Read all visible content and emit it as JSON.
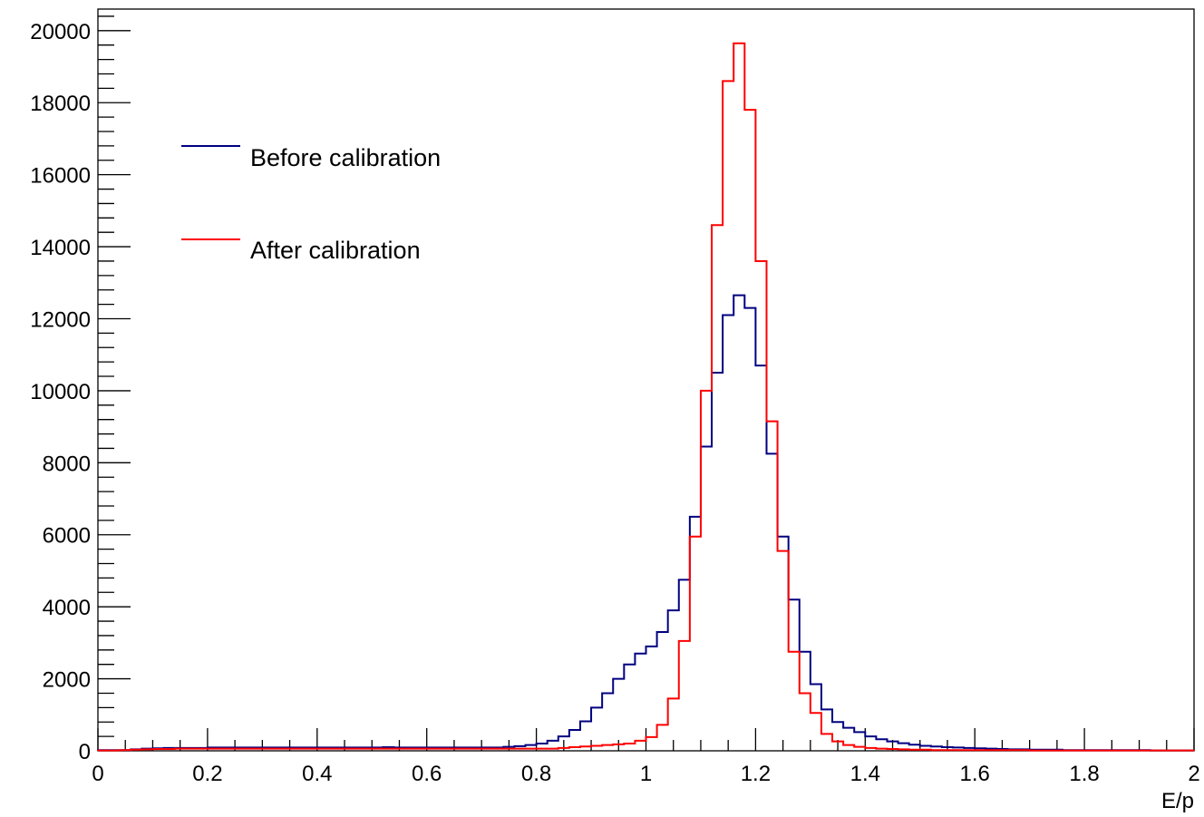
{
  "chart_data": {
    "type": "line",
    "title": "",
    "xlabel": "E/p",
    "ylabel": "",
    "xlim": [
      0,
      2
    ],
    "ylim": [
      0,
      20600
    ],
    "bin_width": 0.02,
    "x_major_ticks": [
      0,
      0.2,
      0.4,
      0.6,
      0.8,
      1,
      1.2,
      1.4,
      1.6,
      1.8,
      2
    ],
    "x_tick_labels": [
      "0",
      "0.2",
      "0.4",
      "0.6",
      "0.8",
      "1",
      "1.2",
      "1.4",
      "1.6",
      "1.8",
      "2"
    ],
    "y_major_ticks": [
      0,
      2000,
      4000,
      6000,
      8000,
      10000,
      12000,
      14000,
      16000,
      18000,
      20000
    ],
    "y_tick_labels": [
      "0",
      "2000",
      "4000",
      "6000",
      "8000",
      "10000",
      "12000",
      "14000",
      "16000",
      "18000",
      "20000"
    ],
    "grid": false,
    "legend_position": "top-left",
    "series": [
      {
        "name": "Before calibration",
        "color": "#000080",
        "values": [
          20,
          20,
          20,
          40,
          60,
          70,
          80,
          80,
          80,
          80,
          90,
          90,
          90,
          90,
          90,
          90,
          90,
          90,
          90,
          90,
          90,
          90,
          90,
          90,
          90,
          90,
          100,
          90,
          90,
          90,
          90,
          90,
          90,
          90,
          90,
          90,
          90,
          110,
          130,
          160,
          200,
          280,
          400,
          580,
          820,
          1200,
          1600,
          2000,
          2400,
          2700,
          2900,
          3300,
          3900,
          4750,
          6500,
          8450,
          10500,
          12100,
          12650,
          12300,
          10700,
          8250,
          5950,
          4200,
          2750,
          1850,
          1150,
          800,
          640,
          520,
          400,
          320,
          260,
          210,
          170,
          140,
          120,
          100,
          90,
          80,
          70,
          60,
          50,
          40,
          40,
          30,
          30,
          30,
          20,
          20,
          20,
          20,
          20,
          20,
          20,
          20,
          10,
          10,
          10,
          10
        ]
      },
      {
        "name": "After calibration",
        "color": "#ff0000",
        "values": [
          10,
          10,
          20,
          30,
          40,
          50,
          50,
          60,
          60,
          60,
          60,
          60,
          60,
          60,
          60,
          60,
          60,
          60,
          60,
          60,
          60,
          60,
          60,
          60,
          60,
          60,
          60,
          60,
          60,
          60,
          60,
          60,
          60,
          60,
          60,
          60,
          60,
          60,
          60,
          60,
          60,
          60,
          80,
          100,
          120,
          140,
          160,
          180,
          200,
          280,
          380,
          720,
          1450,
          3050,
          5950,
          10000,
          14600,
          18600,
          19650,
          17800,
          13600,
          9150,
          5550,
          2750,
          1600,
          1050,
          470,
          260,
          160,
          110,
          80,
          60,
          50,
          40,
          30,
          30,
          20,
          20,
          20,
          20,
          20,
          20,
          20,
          20,
          20,
          10,
          10,
          10,
          10,
          10,
          10,
          10,
          10,
          10,
          10,
          10,
          10,
          10,
          10,
          10
        ]
      }
    ]
  }
}
